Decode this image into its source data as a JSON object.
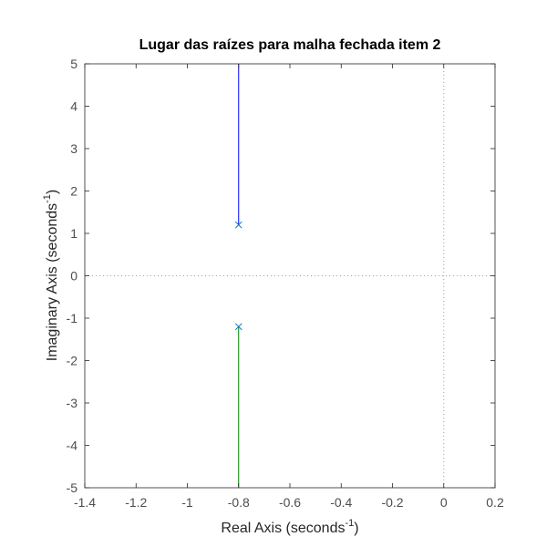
{
  "chart_data": {
    "type": "line",
    "title": "Lugar das raízes para malha fechada item 2",
    "xlabel": {
      "text": "Real Axis (seconds",
      "sup": "-1",
      "close": ")"
    },
    "ylabel": {
      "text": "Imaginary Axis (seconds",
      "sup": "-1",
      "close": ")"
    },
    "xlim": [
      -1.4,
      0.2
    ],
    "ylim": [
      -5,
      5
    ],
    "xticks": [
      -1.4,
      -1.2,
      -1,
      -0.8,
      -0.6,
      -0.4,
      -0.2,
      0,
      0.2
    ],
    "xtick_labels": [
      "-1.4",
      "-1.2",
      "-1",
      "-0.8",
      "-0.6",
      "-0.4",
      "-0.2",
      "0",
      "0.2"
    ],
    "yticks": [
      -5,
      -4,
      -3,
      -2,
      -1,
      0,
      1,
      2,
      3,
      4,
      5
    ],
    "ytick_labels": [
      "-5",
      "-4",
      "-3",
      "-2",
      "-1",
      "0",
      "1",
      "2",
      "3",
      "4",
      "5"
    ],
    "grid": false,
    "reference_lines": {
      "x": 0,
      "y": 0,
      "style": "dotted"
    },
    "series": [
      {
        "x": [
          -0.8,
          -0.8
        ],
        "y": [
          1.2,
          5
        ],
        "color": "#0000ff"
      },
      {
        "x": [
          -0.8,
          -0.8
        ],
        "y": [
          -1.2,
          -5
        ],
        "color": "#008000"
      }
    ],
    "poles": {
      "marker": "x",
      "color": "#0072bd",
      "points": [
        {
          "x": -0.8,
          "y": 1.2
        },
        {
          "x": -0.8,
          "y": -1.2
        }
      ]
    }
  }
}
